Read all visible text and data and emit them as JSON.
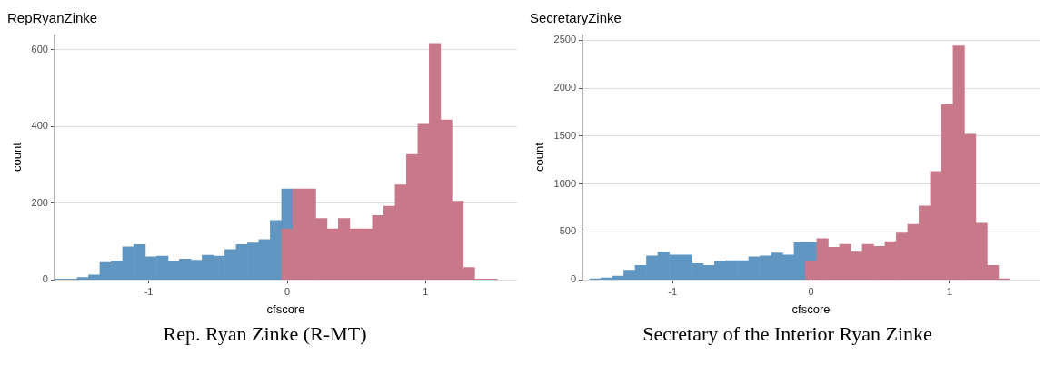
{
  "chart_data": [
    {
      "type": "histogram",
      "title": "RepRyanZinke",
      "xlabel": "cfscore",
      "ylabel": "count",
      "bins": [
        -1.68,
        -1.598,
        -1.516,
        -1.434,
        -1.352,
        -1.27,
        -1.188,
        -1.106,
        -1.024,
        -0.942,
        -0.86,
        -0.778,
        -0.696,
        -0.614,
        -0.532,
        -0.45,
        -0.368,
        -0.286,
        -0.204,
        -0.122,
        -0.04,
        0.042,
        0.124,
        0.206,
        0.288,
        0.37,
        0.452,
        0.534,
        0.616,
        0.698,
        0.78,
        0.862,
        0.944,
        1.026,
        1.108,
        1.19,
        1.272,
        1.354,
        1.436,
        1.518
      ],
      "series": [
        {
          "color": "#6097c2",
          "values": [
            2,
            2,
            6,
            13,
            45,
            49,
            86,
            92,
            60,
            62,
            47,
            54,
            51,
            64,
            62,
            79,
            92,
            96,
            105,
            155,
            237,
            null,
            null,
            null,
            null,
            null,
            null,
            null,
            null,
            null,
            null,
            null,
            null,
            null,
            null,
            null,
            null,
            null,
            null
          ]
        },
        {
          "color": "#c77889",
          "values": [
            null,
            null,
            null,
            null,
            null,
            null,
            null,
            null,
            null,
            null,
            null,
            null,
            null,
            null,
            null,
            null,
            null,
            null,
            null,
            null,
            133,
            237,
            237,
            160,
            133,
            160,
            133,
            133,
            168,
            192,
            248,
            327,
            406,
            617,
            417,
            205,
            32,
            2,
            2
          ]
        }
      ],
      "xlim": [
        -1.68,
        1.66
      ],
      "ylim": [
        0,
        640
      ],
      "xticks": [
        -1,
        0,
        1
      ],
      "yticks": [
        0,
        200,
        400,
        600
      ],
      "grid": "y",
      "annotations": [
        "Rep. Ryan Zinke (R-MT)"
      ]
    },
    {
      "type": "histogram",
      "title": "SecretaryZinke",
      "xlabel": "cfscore",
      "ylabel": "count",
      "bins": [
        -1.598,
        -1.516,
        -1.434,
        -1.352,
        -1.27,
        -1.188,
        -1.106,
        -1.024,
        -0.942,
        -0.86,
        -0.778,
        -0.696,
        -0.614,
        -0.532,
        -0.45,
        -0.368,
        -0.286,
        -0.204,
        -0.122,
        -0.04,
        0.042,
        0.124,
        0.206,
        0.288,
        0.37,
        0.452,
        0.534,
        0.616,
        0.698,
        0.78,
        0.862,
        0.944,
        1.026,
        1.108,
        1.19,
        1.272,
        1.354,
        1.436
      ],
      "series": [
        {
          "color": "#6097c2",
          "values": [
            10,
            20,
            40,
            100,
            150,
            250,
            290,
            260,
            260,
            170,
            150,
            190,
            200,
            200,
            240,
            250,
            280,
            260,
            390,
            390,
            null,
            null,
            null,
            null,
            null,
            null,
            null,
            null,
            null,
            null,
            null,
            null,
            null,
            null,
            null,
            null,
            null
          ]
        },
        {
          "color": "#c77889",
          "values": [
            null,
            null,
            null,
            null,
            null,
            null,
            null,
            null,
            null,
            null,
            null,
            null,
            null,
            null,
            null,
            null,
            null,
            null,
            null,
            190,
            430,
            340,
            370,
            300,
            370,
            350,
            400,
            490,
            580,
            770,
            1130,
            1830,
            2440,
            1520,
            590,
            150,
            10
          ]
        }
      ],
      "xlim": [
        -1.65,
        1.65
      ],
      "ylim": [
        0,
        2560
      ],
      "xticks": [
        -1,
        0,
        1
      ],
      "yticks": [
        0,
        500,
        1000,
        1500,
        2000,
        2500
      ],
      "grid": "y",
      "annotations": [
        "Secretary of the Interior Ryan Zinke"
      ]
    }
  ]
}
